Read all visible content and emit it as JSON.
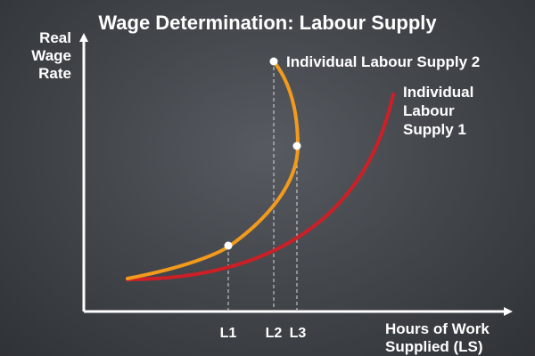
{
  "title": "Wage Determination: Labour Supply",
  "y_axis_label": [
    "Real",
    "Wage",
    "Rate"
  ],
  "x_axis_label": [
    "Hours of Work",
    "Supplied (LS)"
  ],
  "tick_labels": [
    "L1",
    "L2",
    "L3"
  ],
  "series": [
    {
      "label_lines": [
        "Individual",
        "Labour",
        "Supply 1"
      ],
      "color": "#cc1f26"
    },
    {
      "label_lines": [
        "Individual Labour Supply 2"
      ],
      "color": "#f39a1c"
    }
  ],
  "colors": {
    "axis": "#ffffff",
    "guide": "#d8d8d8",
    "marker": "#ffffff"
  }
}
